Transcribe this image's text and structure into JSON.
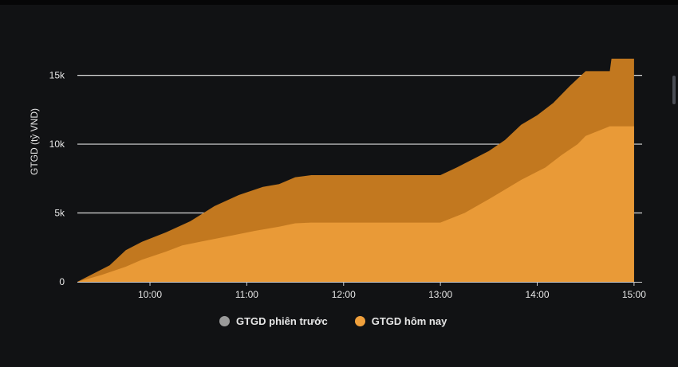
{
  "chart_data": {
    "type": "area",
    "ylabel": "GTGD (tỷ VND)",
    "xlabel": "",
    "x_ticks": [
      "10:00",
      "11:00",
      "12:00",
      "13:00",
      "14:00",
      "15:00"
    ],
    "y_ticks": [
      "0",
      "5k",
      "10k",
      "15k"
    ],
    "ylim": [
      0,
      17000
    ],
    "xlim": [
      "9:15",
      "15:05"
    ],
    "grid": true,
    "legend_position": "bottom",
    "series": [
      {
        "name": "GTGD phiên trước",
        "color": "#c2781f",
        "x": [
          "9:15",
          "9:35",
          "9:45",
          "9:55",
          "10:10",
          "10:25",
          "10:40",
          "10:55",
          "11:10",
          "11:20",
          "11:30",
          "11:40",
          "12:00",
          "12:30",
          "13:00",
          "13:10",
          "13:20",
          "13:30",
          "13:40",
          "13:50",
          "14:00",
          "14:10",
          "14:20",
          "14:30",
          "14:45",
          "14:46",
          "15:00"
        ],
        "values": [
          0,
          1200,
          2300,
          2900,
          3600,
          4400,
          5500,
          6300,
          6900,
          7100,
          7600,
          7750,
          7750,
          7750,
          7750,
          8300,
          8900,
          9500,
          10300,
          11400,
          12100,
          13000,
          14200,
          15300,
          15300,
          16200,
          16200
        ]
      },
      {
        "name": "GTGD hôm nay",
        "color": "#f0a03c",
        "x": [
          "9:15",
          "9:30",
          "9:45",
          "9:55",
          "10:10",
          "10:20",
          "10:35",
          "10:50",
          "11:05",
          "11:20",
          "11:30",
          "11:40",
          "12:00",
          "12:30",
          "13:00",
          "13:15",
          "13:30",
          "13:40",
          "13:50",
          "14:00",
          "14:05",
          "14:15",
          "14:25",
          "14:30",
          "14:45",
          "15:00"
        ],
        "values": [
          0,
          500,
          1100,
          1600,
          2200,
          2650,
          3000,
          3350,
          3700,
          4000,
          4250,
          4300,
          4300,
          4300,
          4300,
          5000,
          6000,
          6700,
          7400,
          8000,
          8300,
          9200,
          10000,
          10600,
          11300,
          11300
        ]
      }
    ]
  }
}
